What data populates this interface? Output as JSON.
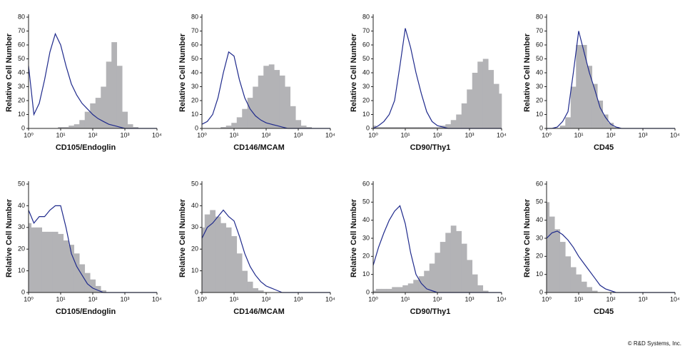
{
  "chart_data": [
    {
      "type": "line",
      "xlabel": "CD105/Endoglin",
      "ylabel": "Relative Cell Number",
      "log_x": true,
      "x": [
        1,
        1.47,
        2.15,
        3.16,
        4.64,
        6.81,
        10,
        14.7,
        21.5,
        31.6,
        46.4,
        68.1,
        100,
        147,
        215,
        316,
        464,
        681,
        1000,
        1468,
        2154,
        3162,
        4642,
        6813,
        10000
      ],
      "xlim": [
        1,
        10000
      ],
      "xticks": [
        {
          "value": 1,
          "label": "10⁰"
        },
        {
          "value": 10,
          "label": "10¹"
        },
        {
          "value": 100,
          "label": "10²"
        },
        {
          "value": 1000,
          "label": "10³"
        },
        {
          "value": 10000,
          "label": "10⁴"
        }
      ],
      "ylim": [
        0,
        80
      ],
      "yticks": [
        0,
        10,
        20,
        30,
        40,
        50,
        60,
        70,
        80
      ],
      "series": [
        {
          "color": "#b3b3b6",
          "filled": true,
          "values": [
            0,
            0,
            0,
            0,
            0,
            0,
            1,
            1,
            2,
            3,
            6,
            12,
            18,
            22,
            30,
            48,
            62,
            45,
            12,
            3,
            1,
            0,
            0,
            0,
            0
          ]
        },
        {
          "color": "#1f2a8c",
          "filled": false,
          "values": [
            45,
            10,
            18,
            35,
            55,
            68,
            60,
            45,
            32,
            24,
            18,
            14,
            10,
            7,
            5,
            3,
            2,
            1,
            0,
            0,
            0,
            0,
            0,
            0,
            0
          ]
        }
      ]
    },
    {
      "type": "line",
      "xlabel": "CD146/MCAM",
      "ylabel": "Relative Cell Number",
      "log_x": true,
      "x": [
        1,
        1.47,
        2.15,
        3.16,
        4.64,
        6.81,
        10,
        14.7,
        21.5,
        31.6,
        46.4,
        68.1,
        100,
        147,
        215,
        316,
        464,
        681,
        1000,
        1468,
        2154,
        3162,
        4642,
        6813,
        10000
      ],
      "xlim": [
        1,
        10000
      ],
      "xticks": [
        {
          "value": 1,
          "label": "10⁰"
        },
        {
          "value": 10,
          "label": "10¹"
        },
        {
          "value": 100,
          "label": "10²"
        },
        {
          "value": 1000,
          "label": "10³"
        },
        {
          "value": 10000,
          "label": "10⁴"
        }
      ],
      "ylim": [
        0,
        80
      ],
      "yticks": [
        0,
        10,
        20,
        30,
        40,
        50,
        60,
        70,
        80
      ],
      "series": [
        {
          "color": "#b3b3b6",
          "filled": true,
          "values": [
            0,
            0,
            0,
            0,
            1,
            2,
            4,
            8,
            14,
            22,
            30,
            38,
            45,
            46,
            42,
            38,
            30,
            16,
            6,
            2,
            1,
            0,
            0,
            0,
            0
          ]
        },
        {
          "color": "#1f2a8c",
          "filled": false,
          "values": [
            3,
            5,
            10,
            22,
            40,
            55,
            52,
            35,
            22,
            14,
            9,
            6,
            4,
            3,
            2,
            1,
            0,
            0,
            0,
            0,
            0,
            0,
            0,
            0,
            0
          ]
        }
      ]
    },
    {
      "type": "line",
      "xlabel": "CD90/Thy1",
      "ylabel": "Relative Cell Number",
      "log_x": true,
      "x": [
        1,
        1.47,
        2.15,
        3.16,
        4.64,
        6.81,
        10,
        14.7,
        21.5,
        31.6,
        46.4,
        68.1,
        100,
        147,
        215,
        316,
        464,
        681,
        1000,
        1468,
        2154,
        3162,
        4642,
        6813,
        10000
      ],
      "xlim": [
        1,
        10000
      ],
      "xticks": [
        {
          "value": 1,
          "label": "10⁰"
        },
        {
          "value": 10,
          "label": "10¹"
        },
        {
          "value": 100,
          "label": "10²"
        },
        {
          "value": 1000,
          "label": "10³"
        },
        {
          "value": 10000,
          "label": "10⁴"
        }
      ],
      "ylim": [
        0,
        80
      ],
      "yticks": [
        0,
        10,
        20,
        30,
        40,
        50,
        60,
        70,
        80
      ],
      "series": [
        {
          "color": "#b3b3b6",
          "filled": true,
          "values": [
            2,
            1,
            1,
            1,
            1,
            1,
            1,
            1,
            1,
            1,
            1,
            1,
            1,
            2,
            3,
            6,
            10,
            18,
            28,
            40,
            48,
            50,
            42,
            32,
            25
          ]
        },
        {
          "color": "#1f2a8c",
          "filled": false,
          "values": [
            0,
            2,
            5,
            10,
            20,
            45,
            72,
            58,
            40,
            25,
            12,
            5,
            2,
            1,
            0,
            0,
            0,
            0,
            0,
            0,
            0,
            0,
            0,
            0,
            0
          ]
        }
      ]
    },
    {
      "type": "line",
      "xlabel": "CD45",
      "ylabel": "Relative Cell Number",
      "log_x": true,
      "x": [
        1,
        1.47,
        2.15,
        3.16,
        4.64,
        6.81,
        10,
        14.7,
        21.5,
        31.6,
        46.4,
        68.1,
        100,
        147,
        215,
        316,
        464,
        681,
        1000,
        1468,
        2154,
        3162,
        4642,
        6813,
        10000
      ],
      "xlim": [
        1,
        10000
      ],
      "xticks": [
        {
          "value": 1,
          "label": "10⁰"
        },
        {
          "value": 10,
          "label": "10¹"
        },
        {
          "value": 100,
          "label": "10²"
        },
        {
          "value": 1000,
          "label": "10³"
        },
        {
          "value": 10000,
          "label": "10⁴"
        }
      ],
      "ylim": [
        0,
        80
      ],
      "yticks": [
        0,
        10,
        20,
        30,
        40,
        50,
        60,
        70,
        80
      ],
      "series": [
        {
          "color": "#b3b3b6",
          "filled": true,
          "values": [
            0,
            0,
            0,
            2,
            8,
            30,
            60,
            60,
            45,
            32,
            20,
            10,
            4,
            1,
            0,
            0,
            0,
            0,
            0,
            0,
            0,
            0,
            0,
            0,
            0
          ]
        },
        {
          "color": "#1f2a8c",
          "filled": false,
          "values": [
            0,
            0,
            1,
            5,
            12,
            40,
            70,
            55,
            40,
            28,
            15,
            8,
            3,
            1,
            0,
            0,
            0,
            0,
            0,
            0,
            0,
            0,
            0,
            0,
            0
          ]
        }
      ]
    },
    {
      "type": "line",
      "xlabel": "CD105/Endoglin",
      "ylabel": "Relative Cell Number",
      "log_x": true,
      "x": [
        1,
        1.47,
        2.15,
        3.16,
        4.64,
        6.81,
        10,
        14.7,
        21.5,
        31.6,
        46.4,
        68.1,
        100,
        147,
        215,
        316,
        464,
        681,
        1000,
        1468,
        2154,
        3162,
        4642,
        6813,
        10000
      ],
      "xlim": [
        1,
        10000
      ],
      "xticks": [
        {
          "value": 1,
          "label": "10⁰"
        },
        {
          "value": 10,
          "label": "10¹"
        },
        {
          "value": 100,
          "label": "10²"
        },
        {
          "value": 1000,
          "label": "10³"
        },
        {
          "value": 10000,
          "label": "10⁴"
        }
      ],
      "ylim": [
        0,
        50
      ],
      "yticks": [
        0,
        10,
        20,
        30,
        40,
        50
      ],
      "series": [
        {
          "color": "#b3b3b6",
          "filled": true,
          "values": [
            32,
            30,
            30,
            28,
            28,
            28,
            27,
            24,
            22,
            18,
            13,
            9,
            6,
            3,
            1,
            0,
            0,
            0,
            0,
            0,
            0,
            0,
            0,
            0,
            0
          ]
        },
        {
          "color": "#1f2a8c",
          "filled": false,
          "values": [
            38,
            32,
            35,
            35,
            38,
            40,
            40,
            30,
            18,
            12,
            8,
            4,
            2,
            1,
            0,
            0,
            0,
            0,
            0,
            0,
            0,
            0,
            0,
            0,
            0
          ]
        }
      ]
    },
    {
      "type": "line",
      "xlabel": "CD146/MCAM",
      "ylabel": "Relative Cell Number",
      "log_x": true,
      "x": [
        1,
        1.47,
        2.15,
        3.16,
        4.64,
        6.81,
        10,
        14.7,
        21.5,
        31.6,
        46.4,
        68.1,
        100,
        147,
        215,
        316,
        464,
        681,
        1000,
        1468,
        2154,
        3162,
        4642,
        6813,
        10000
      ],
      "xlim": [
        1,
        10000
      ],
      "xticks": [
        {
          "value": 1,
          "label": "10⁰"
        },
        {
          "value": 10,
          "label": "10¹"
        },
        {
          "value": 100,
          "label": "10²"
        },
        {
          "value": 1000,
          "label": "10³"
        },
        {
          "value": 10000,
          "label": "10⁴"
        }
      ],
      "ylim": [
        0,
        50
      ],
      "yticks": [
        0,
        10,
        20,
        30,
        40,
        50
      ],
      "series": [
        {
          "color": "#b3b3b6",
          "filled": true,
          "values": [
            30,
            36,
            38,
            35,
            32,
            30,
            26,
            18,
            10,
            5,
            2,
            1,
            0,
            0,
            0,
            0,
            0,
            0,
            0,
            0,
            0,
            0,
            0,
            0,
            0
          ]
        },
        {
          "color": "#1f2a8c",
          "filled": false,
          "values": [
            25,
            30,
            32,
            35,
            38,
            35,
            33,
            26,
            18,
            12,
            8,
            5,
            3,
            2,
            1,
            0,
            0,
            0,
            0,
            0,
            0,
            0,
            0,
            0,
            0
          ]
        }
      ]
    },
    {
      "type": "line",
      "xlabel": "CD90/Thy1",
      "ylabel": "Relative Cell Number",
      "log_x": true,
      "x": [
        1,
        1.47,
        2.15,
        3.16,
        4.64,
        6.81,
        10,
        14.7,
        21.5,
        31.6,
        46.4,
        68.1,
        100,
        147,
        215,
        316,
        464,
        681,
        1000,
        1468,
        2154,
        3162,
        4642,
        6813,
        10000
      ],
      "xlim": [
        1,
        10000
      ],
      "xticks": [
        {
          "value": 1,
          "label": "10⁰"
        },
        {
          "value": 10,
          "label": "10¹"
        },
        {
          "value": 100,
          "label": "10²"
        },
        {
          "value": 1000,
          "label": "10³"
        },
        {
          "value": 10000,
          "label": "10⁴"
        }
      ],
      "ylim": [
        0,
        60
      ],
      "yticks": [
        0,
        10,
        20,
        30,
        40,
        50,
        60
      ],
      "series": [
        {
          "color": "#b3b3b6",
          "filled": true,
          "values": [
            1,
            2,
            2,
            2,
            3,
            3,
            4,
            5,
            7,
            9,
            12,
            16,
            22,
            28,
            33,
            37,
            34,
            27,
            18,
            10,
            4,
            1,
            0,
            0,
            0
          ]
        },
        {
          "color": "#1f2a8c",
          "filled": false,
          "values": [
            15,
            25,
            33,
            40,
            45,
            48,
            38,
            22,
            10,
            5,
            2,
            1,
            0,
            0,
            0,
            0,
            0,
            0,
            0,
            0,
            0,
            0,
            0,
            0,
            0
          ]
        }
      ]
    },
    {
      "type": "line",
      "xlabel": "CD45",
      "ylabel": "Relative Cell Number",
      "log_x": true,
      "x": [
        1,
        1.47,
        2.15,
        3.16,
        4.64,
        6.81,
        10,
        14.7,
        21.5,
        31.6,
        46.4,
        68.1,
        100,
        147,
        215,
        316,
        464,
        681,
        1000,
        1468,
        2154,
        3162,
        4642,
        6813,
        10000
      ],
      "xlim": [
        1,
        10000
      ],
      "xticks": [
        {
          "value": 1,
          "label": "10⁰"
        },
        {
          "value": 10,
          "label": "10¹"
        },
        {
          "value": 100,
          "label": "10²"
        },
        {
          "value": 1000,
          "label": "10³"
        },
        {
          "value": 10000,
          "label": "10⁴"
        }
      ],
      "ylim": [
        0,
        60
      ],
      "yticks": [
        0,
        10,
        20,
        30,
        40,
        50,
        60
      ],
      "series": [
        {
          "color": "#b3b3b6",
          "filled": true,
          "values": [
            50,
            42,
            35,
            28,
            20,
            14,
            10,
            6,
            3,
            1,
            0,
            0,
            0,
            0,
            0,
            0,
            0,
            0,
            0,
            0,
            0,
            0,
            0,
            0,
            0
          ]
        },
        {
          "color": "#1f2a8c",
          "filled": false,
          "values": [
            30,
            33,
            34,
            32,
            29,
            25,
            20,
            16,
            12,
            8,
            4,
            2,
            1,
            0,
            0,
            0,
            0,
            0,
            0,
            0,
            0,
            0,
            0,
            0,
            0
          ]
        }
      ]
    }
  ],
  "copyright": "© R&D Systems, Inc."
}
